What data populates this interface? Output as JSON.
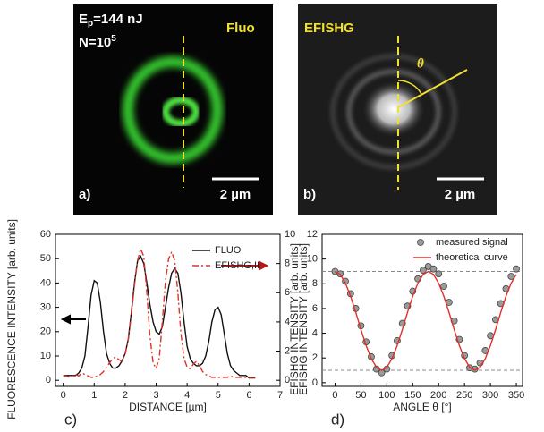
{
  "panels": [
    {
      "label": "a)",
      "energy": [
        "E",
        "p",
        "=144 nJ"
      ],
      "count": [
        "N=10",
        "5"
      ],
      "name": "Fluo",
      "scale": "2 µm"
    },
    {
      "label": "b)",
      "name": "EFISHG",
      "angle": "θ",
      "scale": "2 µm"
    }
  ],
  "chart_data": [
    {
      "type": "line",
      "label": "c)",
      "xlabel": "DISTANCE [µm]",
      "ylabel": "FLUORESCENCE INTENSITY [arb. units]",
      "y2label": "EFISHG INTENSITY [arb. units]",
      "xlim": [
        -0.25,
        7
      ],
      "xticks": [
        0,
        1,
        2,
        3,
        4,
        5,
        6,
        7
      ],
      "ylim": [
        -2.5,
        60
      ],
      "yticks": [
        0,
        10,
        20,
        30,
        40,
        50,
        60
      ],
      "y2lim": [
        -0.417,
        10
      ],
      "y2ticks": [
        0,
        2,
        4,
        6,
        8,
        10
      ],
      "x": [
        0.0,
        0.1,
        0.2,
        0.3,
        0.4,
        0.5,
        0.6,
        0.7,
        0.8,
        0.9,
        1.0,
        1.1,
        1.2,
        1.3,
        1.4,
        1.5,
        1.6,
        1.7,
        1.8,
        1.9,
        2.0,
        2.1,
        2.2,
        2.3,
        2.4,
        2.5,
        2.6,
        2.7,
        2.8,
        2.9,
        3.0,
        3.1,
        3.2,
        3.3,
        3.4,
        3.5,
        3.6,
        3.7,
        3.8,
        3.9,
        4.0,
        4.1,
        4.2,
        4.3,
        4.4,
        4.5,
        4.6,
        4.7,
        4.8,
        4.9,
        5.0,
        5.1,
        5.2,
        5.3,
        5.4,
        5.5,
        5.6,
        5.7,
        5.8,
        5.9,
        6.0,
        6.1,
        6.2
      ],
      "series": [
        {
          "name": "FLUO",
          "color": "#111111",
          "dash": "solid",
          "values": [
            2,
            2,
            2,
            2,
            2,
            3,
            5,
            10,
            22,
            35,
            41,
            40,
            32,
            20,
            11,
            7,
            5,
            5,
            6,
            8,
            11,
            17,
            28,
            40,
            49,
            51,
            48,
            40,
            31,
            24,
            20,
            19,
            22,
            30,
            38,
            44,
            46,
            44,
            36,
            24,
            14,
            9,
            7,
            6,
            6,
            7,
            10,
            16,
            24,
            29,
            30,
            27,
            19,
            11,
            6,
            4,
            3,
            2,
            2,
            2,
            1,
            1,
            1
          ]
        },
        {
          "name": "EFISHG,II",
          "color": "#e0302a",
          "dash": "dashdot",
          "axis": "y2",
          "values": [
            0.3,
            0.3,
            0.2,
            0.3,
            0.4,
            0.3,
            0.5,
            0.4,
            0.3,
            0.2,
            0.2,
            0.3,
            0.4,
            0.6,
            0.9,
            1.2,
            1.5,
            1.6,
            1.4,
            1.3,
            1.8,
            2.8,
            4.5,
            6.5,
            8.2,
            9.0,
            8.5,
            6.0,
            3.0,
            1.2,
            0.8,
            1.5,
            4.0,
            6.8,
            8.3,
            8.8,
            8.2,
            6.0,
            3.2,
            1.5,
            0.9,
            0.8,
            1.1,
            1.3,
            1.0,
            0.6,
            0.4,
            0.3,
            0.2,
            0.2,
            0.2,
            0.2,
            0.2,
            0.2,
            0.3,
            0.2,
            0.2,
            0.2,
            0.2,
            0.2,
            0.2,
            0.2,
            0.2
          ]
        }
      ]
    },
    {
      "type": "scatter",
      "label": "d)",
      "xlabel": "ANGLE θ [°]",
      "ylabel": "EFISHG INTENSITY [arb. units]",
      "xlim": [
        -25,
        362
      ],
      "xticks": [
        0,
        50,
        100,
        150,
        200,
        250,
        300,
        350
      ],
      "ylim": [
        -0.3,
        12
      ],
      "yticks": [
        0,
        2,
        4,
        6,
        8,
        10,
        12
      ],
      "reference_lines": [
        1,
        9
      ],
      "reference_color": "#888888",
      "x": [
        0,
        10,
        20,
        30,
        40,
        50,
        60,
        70,
        80,
        90,
        100,
        110,
        120,
        130,
        140,
        150,
        160,
        170,
        180,
        190,
        200,
        210,
        220,
        230,
        240,
        250,
        260,
        270,
        280,
        290,
        300,
        310,
        320,
        330,
        340,
        350
      ],
      "series": [
        {
          "name": "measured signal",
          "color": "#9a9a9a",
          "mode": "markers",
          "values": [
            9.0,
            8.8,
            8.2,
            7.2,
            6.0,
            4.6,
            3.3,
            2.1,
            1.1,
            0.8,
            1.1,
            2.2,
            3.4,
            4.8,
            6.2,
            7.4,
            8.4,
            9.1,
            9.4,
            9.2,
            8.8,
            7.8,
            6.5,
            5.0,
            3.5,
            2.2,
            1.2,
            1.1,
            1.6,
            2.6,
            3.8,
            5.1,
            6.4,
            7.6,
            8.6,
            9.2
          ]
        },
        {
          "name": "theoretical curve",
          "color": "#e0302a",
          "mode": "lines",
          "values": [
            9,
            8.76,
            8.06,
            7,
            5.7,
            4.3,
            3,
            1.94,
            1.24,
            1,
            1.24,
            1.94,
            3,
            4.3,
            5.7,
            7,
            8.06,
            8.76,
            9,
            8.76,
            8.06,
            7,
            5.7,
            4.3,
            3,
            1.94,
            1.24,
            1,
            1.24,
            1.94,
            3,
            4.3,
            5.7,
            7,
            8.06,
            8.76
          ]
        }
      ]
    }
  ]
}
